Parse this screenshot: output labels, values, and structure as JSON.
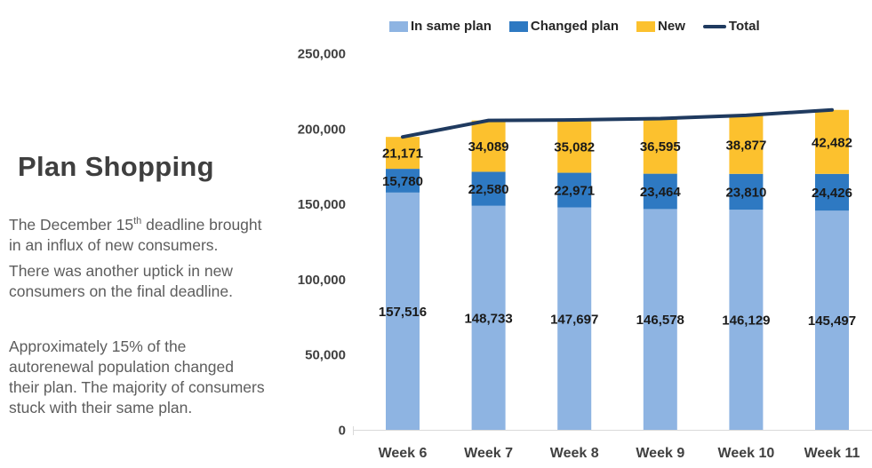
{
  "slide": {
    "title": "Plan Shopping",
    "paragraph1": {
      "line1_pre": "The December 15",
      "line1_sup": "th",
      "line1_post": " deadline brought",
      "line2": "in an influx of new consumers."
    },
    "paragraph2": {
      "lines": [
        "There was another uptick in new",
        "consumers on the final deadline."
      ]
    },
    "paragraph3": {
      "lines": [
        "Approximately 15% of the",
        "autorenewal population changed",
        "their plan. The majority of consumers",
        "stuck with their same plan."
      ]
    }
  },
  "legend": {
    "items": [
      {
        "label": "In same plan",
        "marker": "swatch",
        "color": "#8EB4E2"
      },
      {
        "label": "Changed plan",
        "marker": "swatch",
        "color": "#2E79C2"
      },
      {
        "label": "New",
        "marker": "swatch",
        "color": "#FCC12E"
      },
      {
        "label": "Total",
        "marker": "line",
        "color": "#1F3A5F"
      }
    ]
  },
  "chart_data": {
    "type": "bar",
    "subtype": "stacked-bar-with-total-line",
    "categories": [
      "Week 6",
      "Week 7",
      "Week 8",
      "Week 9",
      "Week 10",
      "Week 11"
    ],
    "series": [
      {
        "name": "In same plan",
        "color": "#8EB4E2",
        "values": [
          157516,
          148733,
          147697,
          146578,
          146129,
          145497
        ]
      },
      {
        "name": "Changed plan",
        "color": "#2E79C2",
        "values": [
          15780,
          22580,
          22971,
          23464,
          23810,
          24426
        ]
      },
      {
        "name": "New",
        "color": "#FCC12E",
        "values": [
          21171,
          34089,
          35082,
          36595,
          38877,
          42482
        ]
      }
    ],
    "line_series": {
      "name": "Total",
      "color": "#1F3A5F",
      "values": [
        194467,
        205402,
        205750,
        206637,
        208816,
        212405
      ]
    },
    "title": "",
    "xlabel": "",
    "ylabel": "",
    "ylim": [
      0,
      250000
    ],
    "yticks": [
      0,
      50000,
      100000,
      150000,
      200000,
      250000
    ],
    "grid": false,
    "legend_position": "top",
    "data_labels": true,
    "axis_label_color": "#404040",
    "data_label_color": "#1a1a1a",
    "axis_line_color": "#d9d9d9"
  }
}
